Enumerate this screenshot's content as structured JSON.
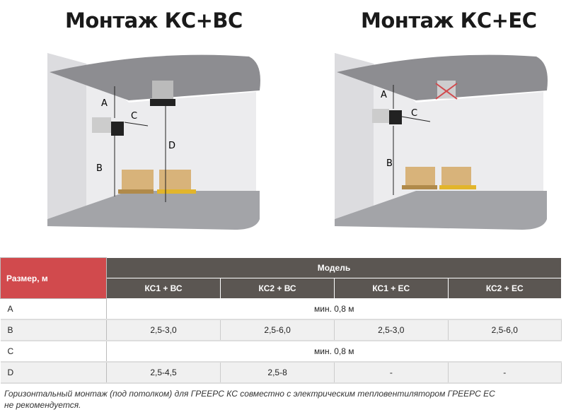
{
  "titles": [
    "Монтаж КС+ВС",
    "Монтаж КС+ЕС"
  ],
  "diagram_labels": {
    "a": "A",
    "b": "B",
    "c": "C",
    "d": "D"
  },
  "table": {
    "size_header": "Размер, м",
    "model_header": "Модель",
    "models": [
      "КС1 + ВС",
      "КС2 + ВС",
      "КС1 + ЕС",
      "КС2 + ЕС"
    ],
    "rows": [
      {
        "label": "A",
        "merged": "мин. 0,8 м"
      },
      {
        "label": "B",
        "values": [
          "2,5-3,0",
          "2,5-6,0",
          "2,5-3,0",
          "2,5-6,0"
        ]
      },
      {
        "label": "C",
        "merged": "мин. 0,8 м"
      },
      {
        "label": "D",
        "values": [
          "2,5-4,5",
          "2,5-8",
          "-",
          "-"
        ]
      }
    ]
  },
  "note": [
    "Горизонтальный монтаж (под потолком) для ГРЕЕРС КС совместно с электрическим тепловентилятором ГРЕЕРС ЕС",
    "не рекомендуется."
  ],
  "colors": {
    "accent": "#d14a4d",
    "header": "#5b5652"
  }
}
